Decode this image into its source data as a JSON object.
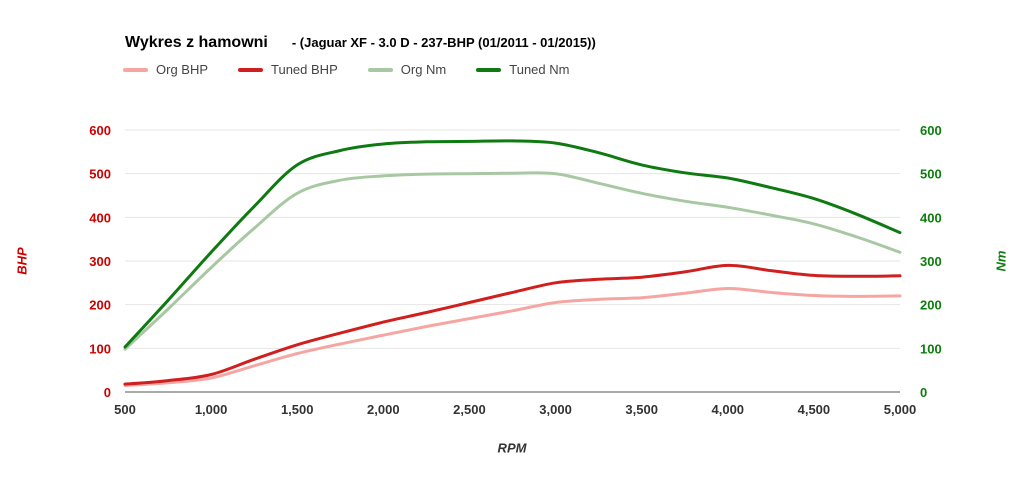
{
  "title": {
    "main": "Wykres z hamowni",
    "sub": "- (Jaguar XF - 3.0 D - 237-BHP (01/2011 - 01/2015))"
  },
  "axes": {
    "left_label": "BHP",
    "right_label": "Nm",
    "x_label": "RPM",
    "left_color": "#cc0000",
    "right_color": "#0e7d0e"
  },
  "chart_data": {
    "type": "line",
    "title": "Wykres z hamowni - (Jaguar XF - 3.0 D - 237-BHP (01/2011 - 01/2015))",
    "xlabel": "RPM",
    "ylabel_left": "BHP",
    "ylabel_right": "Nm",
    "xlim": [
      500,
      5000
    ],
    "ylim": [
      0,
      600
    ],
    "grid": true,
    "legend_position": "top",
    "x_ticks": [
      500,
      1000,
      1500,
      2000,
      2500,
      3000,
      3500,
      4000,
      4500,
      5000
    ],
    "x_tick_labels": [
      "500",
      "1,000",
      "1,500",
      "2,000",
      "2,500",
      "3,000",
      "3,500",
      "4,000",
      "4,500",
      "5,000"
    ],
    "y_ticks": [
      0,
      100,
      200,
      300,
      400,
      500,
      600
    ],
    "y_tick_labels": [
      "0",
      "100",
      "200",
      "300",
      "400",
      "500",
      "600"
    ],
    "x": [
      500,
      750,
      1000,
      1250,
      1500,
      1750,
      2000,
      2250,
      2500,
      2750,
      3000,
      3250,
      3500,
      3750,
      4000,
      4250,
      4500,
      4750,
      5000
    ],
    "series": [
      {
        "name": "Org BHP",
        "color": "#f5a6a2",
        "axis": "left",
        "values": [
          15,
          21,
          32,
          60,
          88,
          110,
          130,
          150,
          168,
          186,
          205,
          212,
          216,
          226,
          237,
          228,
          221,
          219,
          220
        ]
      },
      {
        "name": "Tuned BHP",
        "color": "#d01f1f",
        "axis": "left",
        "values": [
          18,
          26,
          40,
          75,
          108,
          135,
          160,
          182,
          205,
          228,
          250,
          258,
          263,
          275,
          290,
          278,
          267,
          265,
          266
        ]
      },
      {
        "name": "Org Nm",
        "color": "#a8c8a4",
        "axis": "right",
        "values": [
          98,
          190,
          285,
          375,
          455,
          485,
          495,
          499,
          500,
          501,
          500,
          478,
          455,
          437,
          423,
          405,
          385,
          355,
          320
        ]
      },
      {
        "name": "Tuned Nm",
        "color": "#0f7a11",
        "axis": "right",
        "values": [
          103,
          210,
          320,
          425,
          520,
          553,
          568,
          573,
          574,
          575,
          570,
          548,
          520,
          502,
          490,
          468,
          443,
          407,
          365
        ]
      }
    ]
  }
}
